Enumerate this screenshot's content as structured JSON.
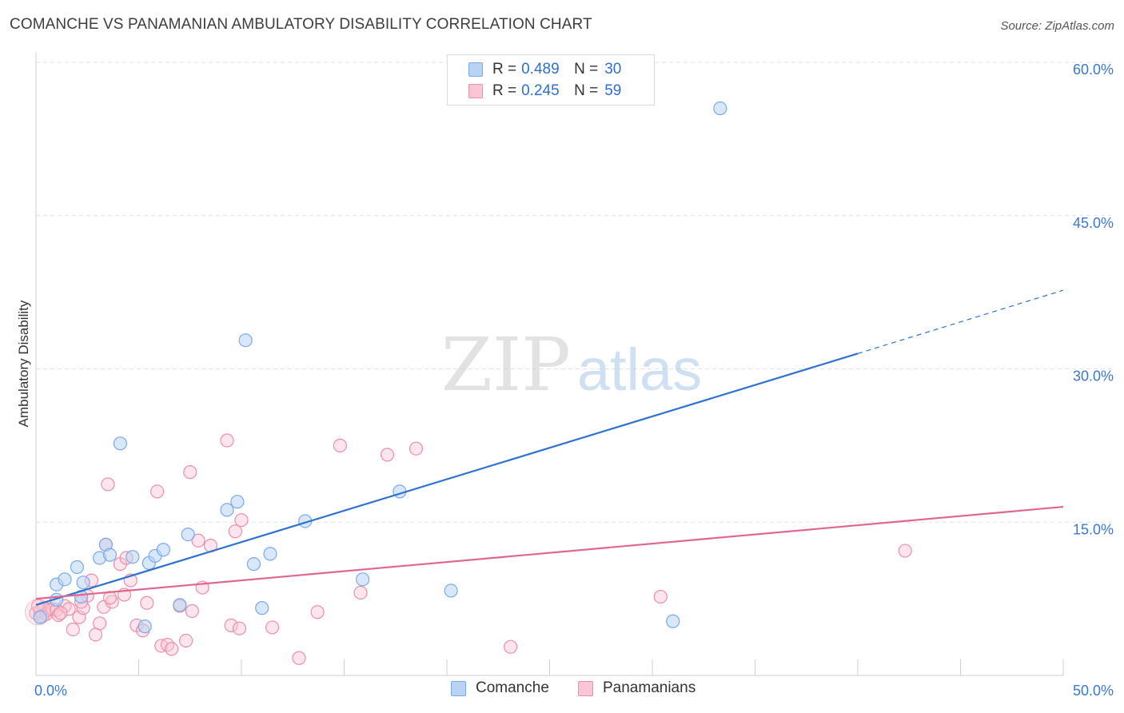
{
  "title": "COMANCHE VS PANAMANIAN AMBULATORY DISABILITY CORRELATION CHART",
  "source": "Source: ZipAtlas.com",
  "watermark": {
    "zip": "ZIP",
    "atlas": "atlas"
  },
  "legend": {
    "r_label": "R =",
    "n_label": "N =",
    "items": [
      {
        "name": "Comanche",
        "r": "0.489",
        "n": "30",
        "color": "#7aaae8",
        "fill": "#b8d3f4"
      },
      {
        "name": "Panamanians",
        "r": "0.245",
        "n": "59",
        "color": "#ee8ea9",
        "fill": "#f8c6d4"
      }
    ]
  },
  "chart_data": {
    "type": "scatter",
    "title": "COMANCHE VS PANAMANIAN AMBULATORY DISABILITY CORRELATION CHART",
    "xlabel": "",
    "ylabel": "Ambulatory Disability",
    "xlim": [
      0,
      50
    ],
    "ylim": [
      0,
      60
    ],
    "x_tick_labels": [
      "0.0%",
      "50.0%"
    ],
    "y_tick_values": [
      15,
      30,
      45,
      60
    ],
    "y_tick_labels": [
      "15.0%",
      "30.0%",
      "45.0%",
      "60.0%"
    ],
    "series": [
      {
        "name": "Comanche",
        "color": "#2f72d0",
        "trend": {
          "x0": 0,
          "y0": 6.9,
          "x1": 40,
          "y1": 31.5,
          "dash_to_x": 50,
          "dash_to_y": 37.7
        },
        "points": [
          [
            0.2,
            5.7
          ],
          [
            1.0,
            7.4
          ],
          [
            1.0,
            8.9
          ],
          [
            1.4,
            9.4
          ],
          [
            2.0,
            10.6
          ],
          [
            2.2,
            7.7
          ],
          [
            2.3,
            9.1
          ],
          [
            3.1,
            11.5
          ],
          [
            3.4,
            12.8
          ],
          [
            3.6,
            11.8
          ],
          [
            4.1,
            22.7
          ],
          [
            4.7,
            11.6
          ],
          [
            5.3,
            4.8
          ],
          [
            5.5,
            11.0
          ],
          [
            5.8,
            11.7
          ],
          [
            6.2,
            12.3
          ],
          [
            7.0,
            6.9
          ],
          [
            7.4,
            13.8
          ],
          [
            9.3,
            16.2
          ],
          [
            9.8,
            17.0
          ],
          [
            10.2,
            32.8
          ],
          [
            10.6,
            10.9
          ],
          [
            11.0,
            6.6
          ],
          [
            11.4,
            11.9
          ],
          [
            13.1,
            15.1
          ],
          [
            15.9,
            9.4
          ],
          [
            17.7,
            18.0
          ],
          [
            20.2,
            8.3
          ],
          [
            31.0,
            5.3
          ],
          [
            33.3,
            55.5
          ]
        ]
      },
      {
        "name": "Panamanians",
        "color": "#e0668e",
        "trend": {
          "x0": 0,
          "y0": 7.5,
          "x1": 50,
          "y1": 16.5
        },
        "points": [
          [
            0.0,
            6.1
          ],
          [
            0.2,
            6.3
          ],
          [
            0.4,
            6.6
          ],
          [
            0.5,
            6.0
          ],
          [
            0.6,
            6.4
          ],
          [
            0.8,
            6.5
          ],
          [
            1.0,
            6.4
          ],
          [
            1.1,
            5.9
          ],
          [
            1.4,
            6.8
          ],
          [
            1.6,
            6.5
          ],
          [
            1.8,
            4.5
          ],
          [
            2.1,
            5.7
          ],
          [
            2.3,
            6.6
          ],
          [
            2.5,
            7.8
          ],
          [
            2.7,
            9.3
          ],
          [
            2.9,
            4.0
          ],
          [
            3.1,
            5.1
          ],
          [
            3.3,
            6.7
          ],
          [
            3.4,
            12.8
          ],
          [
            3.5,
            18.7
          ],
          [
            3.7,
            7.2
          ],
          [
            4.1,
            10.9
          ],
          [
            4.3,
            7.9
          ],
          [
            4.4,
            11.5
          ],
          [
            4.6,
            9.3
          ],
          [
            4.9,
            4.9
          ],
          [
            5.2,
            4.4
          ],
          [
            5.4,
            7.1
          ],
          [
            5.9,
            18.0
          ],
          [
            6.1,
            2.9
          ],
          [
            6.4,
            3.0
          ],
          [
            6.6,
            2.6
          ],
          [
            7.0,
            6.8
          ],
          [
            7.3,
            3.4
          ],
          [
            7.5,
            19.9
          ],
          [
            7.6,
            6.3
          ],
          [
            7.9,
            13.2
          ],
          [
            8.1,
            8.6
          ],
          [
            8.5,
            12.7
          ],
          [
            9.3,
            23.0
          ],
          [
            9.5,
            4.9
          ],
          [
            9.7,
            14.1
          ],
          [
            9.9,
            4.6
          ],
          [
            10.0,
            15.2
          ],
          [
            11.5,
            4.7
          ],
          [
            12.8,
            1.7
          ],
          [
            13.7,
            6.2
          ],
          [
            14.8,
            22.5
          ],
          [
            15.8,
            8.1
          ],
          [
            17.1,
            21.6
          ],
          [
            18.5,
            22.2
          ],
          [
            23.1,
            2.8
          ],
          [
            30.4,
            7.7
          ],
          [
            42.3,
            12.2
          ],
          [
            0.1,
            6.8
          ],
          [
            0.3,
            5.8
          ],
          [
            1.2,
            6.1
          ],
          [
            2.2,
            7.2
          ],
          [
            3.6,
            7.6
          ]
        ]
      }
    ]
  }
}
